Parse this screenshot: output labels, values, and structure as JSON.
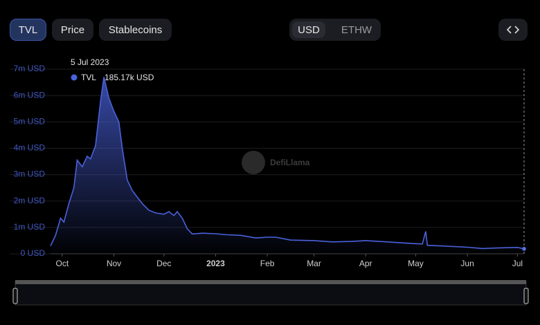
{
  "toolbar": {
    "left": [
      "TVL",
      "Price",
      "Stablecoins"
    ],
    "currency": [
      "USD",
      "ETHW"
    ]
  },
  "watermark": "DefiLlama",
  "chart_data": {
    "type": "area",
    "x": [
      "2022-09-24",
      "2022-09-27",
      "2022-09-30",
      "2022-10-02",
      "2022-10-05",
      "2022-10-08",
      "2022-10-10",
      "2022-10-13",
      "2022-10-16",
      "2022-10-18",
      "2022-10-21",
      "2022-10-24",
      "2022-10-26",
      "2022-10-29",
      "2022-11-01",
      "2022-11-04",
      "2022-11-06",
      "2022-11-09",
      "2022-11-12",
      "2022-11-15",
      "2022-11-18",
      "2022-11-22",
      "2022-11-26",
      "2022-12-01",
      "2022-12-04",
      "2022-12-07",
      "2022-12-09",
      "2022-12-12",
      "2022-12-15",
      "2022-12-18",
      "2022-12-24",
      "2023-01-01",
      "2023-01-08",
      "2023-01-16",
      "2023-01-25",
      "2023-02-01",
      "2023-02-06",
      "2023-02-15",
      "2023-03-01",
      "2023-03-12",
      "2023-03-24",
      "2023-04-01",
      "2023-04-14",
      "2023-04-26",
      "2023-05-05",
      "2023-05-07",
      "2023-05-08",
      "2023-05-16",
      "2023-06-01",
      "2023-06-10",
      "2023-06-19",
      "2023-07-01",
      "2023-07-05"
    ],
    "series": [
      {
        "name": "TVL",
        "color": "#4a62dd",
        "values": [
          300000,
          700000,
          1350000,
          1200000,
          1900000,
          2500000,
          3550000,
          3300000,
          3700000,
          3600000,
          4100000,
          5800000,
          6700000,
          5900000,
          5400000,
          5000000,
          4000000,
          2800000,
          2400000,
          2150000,
          1900000,
          1650000,
          1550000,
          1500000,
          1600000,
          1450000,
          1600000,
          1350000,
          950000,
          750000,
          780000,
          760000,
          720000,
          700000,
          600000,
          630000,
          630000,
          520000,
          500000,
          450000,
          470000,
          500000,
          450000,
          400000,
          370000,
          850000,
          320000,
          300000,
          250000,
          200000,
          220000,
          240000,
          185170
        ]
      }
    ],
    "xlim": [
      "2022-09-24",
      "2023-07-05"
    ],
    "xticks": [
      {
        "value": "2022-10-01",
        "label": "Oct"
      },
      {
        "value": "2022-11-01",
        "label": "Nov"
      },
      {
        "value": "2022-12-01",
        "label": "Dec"
      },
      {
        "value": "2023-01-01",
        "label": "2023"
      },
      {
        "value": "2023-02-01",
        "label": "Feb"
      },
      {
        "value": "2023-03-01",
        "label": "Mar"
      },
      {
        "value": "2023-04-01",
        "label": "Apr"
      },
      {
        "value": "2023-05-01",
        "label": "May"
      },
      {
        "value": "2023-06-01",
        "label": "Jun"
      },
      {
        "value": "2023-07-01",
        "label": "Jul"
      }
    ],
    "ylim": [
      0,
      7000000
    ],
    "yticks": [
      {
        "value": 0,
        "label": "0 USD"
      },
      {
        "value": 1000000,
        "label": "1m USD"
      },
      {
        "value": 2000000,
        "label": "2m USD"
      },
      {
        "value": 3000000,
        "label": "3m USD"
      },
      {
        "value": 4000000,
        "label": "4m USD"
      },
      {
        "value": 5000000,
        "label": "5m USD"
      },
      {
        "value": 6000000,
        "label": "6m USD"
      },
      {
        "value": 7000000,
        "label": "7m USD"
      }
    ],
    "grid": true,
    "tooltip": {
      "title": "5 Jul 2023",
      "label": "185.17k USD"
    }
  }
}
